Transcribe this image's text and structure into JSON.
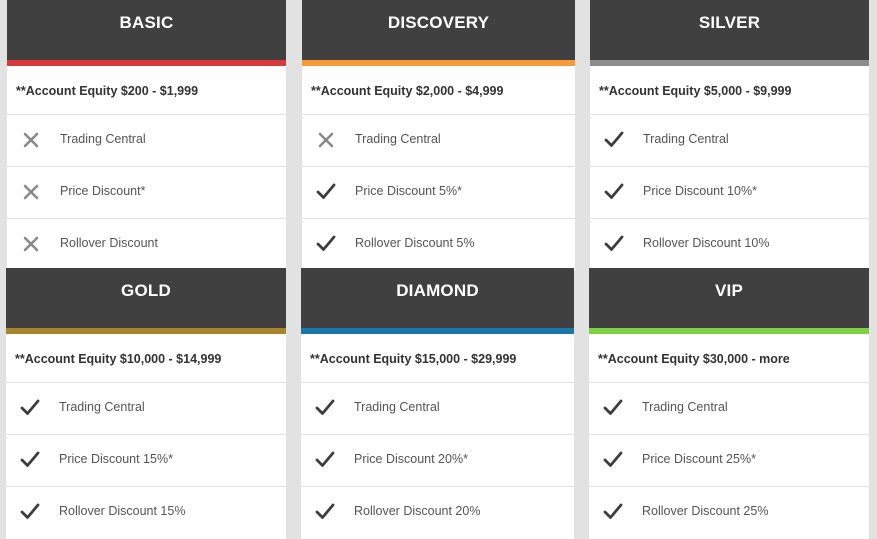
{
  "tiers": [
    {
      "id": "basic",
      "name": "BASIC",
      "accent_color": "#d9393d",
      "equity": "**Account Equity $200 - $1,999",
      "features": [
        {
          "label": "Trading Central",
          "included": false,
          "icon": "cross-icon"
        },
        {
          "label": "Price Discount*",
          "included": false,
          "icon": "cross-icon"
        },
        {
          "label": "Rollover Discount",
          "included": false,
          "icon": "cross-icon"
        }
      ]
    },
    {
      "id": "discovery",
      "name": "DISCOVERY",
      "accent_color": "#f59a37",
      "equity": "**Account Equity $2,000 - $4,999",
      "features": [
        {
          "label": "Trading Central",
          "included": false,
          "icon": "cross-icon"
        },
        {
          "label": "Price Discount 5%*",
          "included": true,
          "icon": "check-icon"
        },
        {
          "label": "Rollover Discount 5%",
          "included": true,
          "icon": "check-icon"
        }
      ]
    },
    {
      "id": "silver",
      "name": "SILVER",
      "accent_color": "#8c8c8c",
      "equity": "**Account Equity $5,000 - $9,999",
      "features": [
        {
          "label": "Trading Central",
          "included": true,
          "icon": "check-icon"
        },
        {
          "label": "Price Discount 10%*",
          "included": true,
          "icon": "check-icon"
        },
        {
          "label": "Rollover Discount 10%",
          "included": true,
          "icon": "check-icon"
        }
      ]
    },
    {
      "id": "gold",
      "name": "GOLD",
      "accent_color": "#a8852a",
      "equity": "**Account Equity $10,000 - $14,999",
      "features": [
        {
          "label": "Trading Central",
          "included": true,
          "icon": "check-icon"
        },
        {
          "label": "Price Discount 15%*",
          "included": true,
          "icon": "check-icon"
        },
        {
          "label": "Rollover Discount 15%",
          "included": true,
          "icon": "check-icon"
        }
      ]
    },
    {
      "id": "diamond",
      "name": "DIAMOND",
      "accent_color": "#1b76a9",
      "equity": "**Account Equity $15,000 - $29,999",
      "features": [
        {
          "label": "Trading Central",
          "included": true,
          "icon": "check-icon"
        },
        {
          "label": "Price Discount 20%*",
          "included": true,
          "icon": "check-icon"
        },
        {
          "label": "Rollover Discount 20%",
          "included": true,
          "icon": "check-icon"
        }
      ]
    },
    {
      "id": "vip",
      "name": "VIP",
      "accent_color": "#7ed145",
      "equity": "**Account Equity $30,000 - more",
      "features": [
        {
          "label": "Trading Central",
          "included": true,
          "icon": "check-icon"
        },
        {
          "label": "Price Discount 25%*",
          "included": true,
          "icon": "check-icon"
        },
        {
          "label": "Rollover Discount 25%",
          "included": true,
          "icon": "check-icon"
        }
      ]
    }
  ]
}
